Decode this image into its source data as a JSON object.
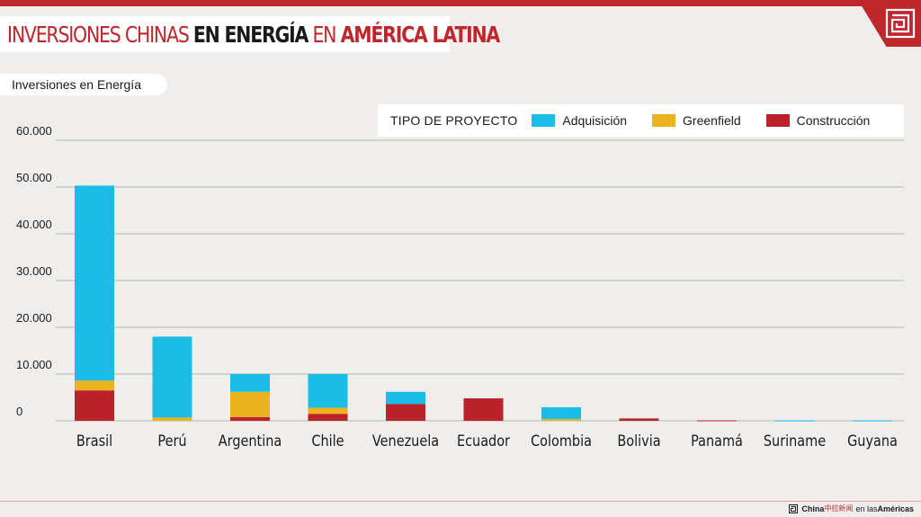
{
  "header": {
    "title_part1": "INVERSIONES CHINAS ",
    "title_part2": "EN ENERGÍA",
    "title_part3": " EN ",
    "title_part4": "AMÉRICA LATINA",
    "subtitle": "Inversiones en Energía"
  },
  "colors": {
    "accent": "#c0272d",
    "adquisicion": "#1bbde6",
    "greenfield": "#ebb31e",
    "construccion": "#b82228",
    "grid": "#b5b5b5"
  },
  "legend": {
    "title": "TIPO DE PROYECTO",
    "items": [
      {
        "label": "Adquisición",
        "key": "adquisicion"
      },
      {
        "label": "Greenfield",
        "key": "greenfield"
      },
      {
        "label": "Construcción",
        "key": "construccion"
      }
    ]
  },
  "footer": {
    "brand": "China",
    "brand_cn": "中拉新闻",
    "brand_mid": " en las ",
    "brand_end": "Américas"
  },
  "chart_data": {
    "type": "bar",
    "stacked": true,
    "title": "Inversiones chinas en energía en América Latina",
    "ylabel": "Inversiones en Energía",
    "xlabel": "",
    "ylim": [
      0,
      60000
    ],
    "yticks": [
      0,
      10000,
      20000,
      30000,
      40000,
      50000,
      60000
    ],
    "ytick_labels": [
      "0",
      "10.000",
      "20.000",
      "30.000",
      "40.000",
      "50.000",
      "60.000"
    ],
    "grid": true,
    "legend_position": "top-right",
    "categories": [
      "Brasil",
      "Perú",
      "Argentina",
      "Chile",
      "Venezuela",
      "Ecuador",
      "Colombia",
      "Bolivia",
      "Panamá",
      "Suriname",
      "Guyana"
    ],
    "series": [
      {
        "name": "Construcción",
        "key": "construccion",
        "values": [
          6500,
          0,
          800,
          1500,
          3600,
          4800,
          0,
          500,
          100,
          0,
          0
        ]
      },
      {
        "name": "Greenfield",
        "key": "greenfield",
        "values": [
          2100,
          700,
          5400,
          1300,
          0,
          0,
          400,
          0,
          0,
          0,
          0
        ]
      },
      {
        "name": "Adquisición",
        "key": "adquisicion",
        "values": [
          41700,
          17300,
          3800,
          7200,
          2600,
          0,
          2500,
          0,
          0,
          80,
          80
        ]
      }
    ]
  }
}
